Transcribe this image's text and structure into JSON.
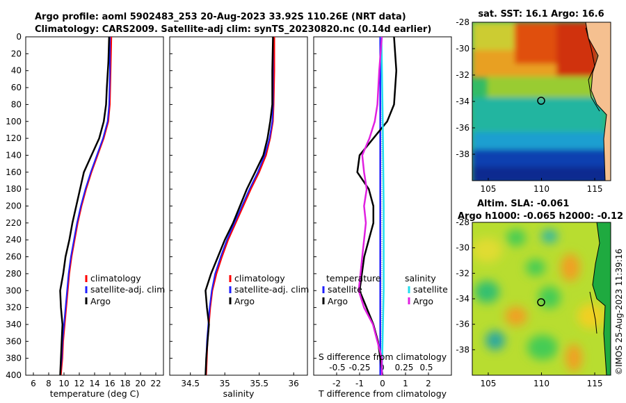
{
  "figure": {
    "title_line1": "Argo profile: aoml 5902483_253 20-Aug-2023 33.92S 110.26E (NRT data)",
    "title_line2": "Climatology: CARS2009. Satellite-adj clim: synTS_20230820.nc (0.14d earlier)",
    "timestamp": "©IMOS 25-Aug-2023 11:39:16"
  },
  "colors": {
    "climatology": "#ff0000",
    "satellite": "#1f1fff",
    "argo": "#000000",
    "sal_satellite": "#22ddee",
    "sal_argo": "#e020e0"
  },
  "chart_data": [
    {
      "type": "line",
      "panel": "temperature",
      "xlabel": "temperature (deg C)",
      "ylabel": "",
      "xlim": [
        5,
        23
      ],
      "ylim": [
        400,
        0
      ],
      "xticks": [
        "6",
        "8",
        "10",
        "12",
        "14",
        "16",
        "18",
        "20",
        "22"
      ],
      "xtick_values": [
        6,
        8,
        10,
        12,
        14,
        16,
        18,
        20,
        22
      ],
      "yticks": [
        0,
        20,
        40,
        60,
        80,
        100,
        120,
        140,
        160,
        180,
        200,
        220,
        240,
        260,
        280,
        300,
        320,
        340,
        360,
        380,
        400
      ],
      "legend": [
        "climatology",
        "satellite-adj. clim",
        "Argo"
      ],
      "series": [
        {
          "name": "climatology",
          "depth": [
            0,
            40,
            80,
            100,
            120,
            140,
            160,
            180,
            200,
            220,
            240,
            260,
            280,
            300,
            320,
            340,
            360,
            380,
            400
          ],
          "values": [
            16.2,
            16.1,
            16.0,
            15.8,
            15.2,
            14.4,
            13.6,
            12.9,
            12.3,
            11.8,
            11.4,
            11.0,
            10.7,
            10.5,
            10.3,
            10.1,
            9.9,
            9.8,
            9.6
          ]
        },
        {
          "name": "satellite-adj. clim",
          "depth": [
            0,
            40,
            80,
            100,
            120,
            140,
            160,
            180,
            200,
            220,
            240,
            260,
            280,
            300,
            320,
            340,
            360,
            380,
            400
          ],
          "values": [
            16.0,
            16.0,
            15.9,
            15.7,
            15.1,
            14.3,
            13.5,
            12.8,
            12.2,
            11.7,
            11.3,
            10.9,
            10.6,
            10.4,
            10.2,
            10.0,
            9.8,
            9.7,
            9.5
          ]
        },
        {
          "name": "Argo",
          "depth": [
            0,
            30,
            60,
            80,
            100,
            120,
            140,
            160,
            180,
            200,
            220,
            240,
            260,
            280,
            300,
            320,
            340,
            360,
            380,
            400
          ],
          "values": [
            15.9,
            15.8,
            15.6,
            15.5,
            15.2,
            14.6,
            13.6,
            12.6,
            12.1,
            11.6,
            11.1,
            10.7,
            10.2,
            9.9,
            9.5,
            9.6,
            9.8,
            9.7,
            9.6,
            9.5
          ]
        }
      ]
    },
    {
      "type": "line",
      "panel": "salinity",
      "xlabel": "salinity",
      "xlim": [
        34.2,
        36.2
      ],
      "ylim": [
        400,
        0
      ],
      "xticks": [
        "34.5",
        "35",
        "35.5",
        "36"
      ],
      "xtick_values": [
        34.5,
        35.0,
        35.5,
        36.0
      ],
      "legend": [
        "climatology",
        "satellite-adj. clim",
        "Argo"
      ],
      "series": [
        {
          "name": "climatology",
          "depth": [
            0,
            40,
            80,
            100,
            120,
            140,
            160,
            180,
            200,
            220,
            240,
            260,
            280,
            300,
            320,
            340,
            360,
            380,
            400
          ],
          "values": [
            35.72,
            35.72,
            35.71,
            35.7,
            35.66,
            35.6,
            35.5,
            35.38,
            35.27,
            35.16,
            35.05,
            34.96,
            34.88,
            34.82,
            34.79,
            34.77,
            34.75,
            34.74,
            34.73
          ]
        },
        {
          "name": "satellite-adj. clim",
          "depth": [
            0,
            40,
            80,
            100,
            120,
            140,
            160,
            180,
            200,
            220,
            240,
            260,
            280,
            300,
            320,
            340,
            360,
            380,
            400
          ],
          "values": [
            35.7,
            35.7,
            35.7,
            35.69,
            35.65,
            35.58,
            35.48,
            35.36,
            35.25,
            35.14,
            35.03,
            34.94,
            34.86,
            34.81,
            34.78,
            34.76,
            34.74,
            34.73,
            34.72
          ]
        },
        {
          "name": "Argo",
          "depth": [
            0,
            40,
            80,
            100,
            120,
            140,
            160,
            180,
            200,
            220,
            240,
            260,
            280,
            300,
            320,
            340,
            360,
            380,
            400
          ],
          "values": [
            35.7,
            35.69,
            35.69,
            35.66,
            35.62,
            35.56,
            35.44,
            35.32,
            35.22,
            35.12,
            35.0,
            34.9,
            34.8,
            34.72,
            34.74,
            34.77,
            34.75,
            34.73,
            34.72
          ]
        }
      ]
    },
    {
      "type": "line",
      "panel": "difference",
      "xlabel": "T difference from climatology",
      "x2label": "S difference from climatology",
      "xlim": [
        -3,
        3
      ],
      "ylim": [
        400,
        0
      ],
      "xticks": [
        "-2",
        "-1",
        "0",
        "1",
        "2"
      ],
      "xtick_values": [
        -2,
        -1,
        0,
        1,
        2
      ],
      "x2ticks": [
        "-0.5",
        "-0.25",
        "0",
        "0.25",
        "0.5"
      ],
      "x2tick_values": [
        -0.5,
        -0.25,
        0,
        0.25,
        0.5
      ],
      "legend": {
        "temperature_title": "temperature",
        "salinity_title": "salinity",
        "entries": [
          "satellite",
          "Argo",
          "satellite",
          "Argo"
        ]
      },
      "series": [
        {
          "name": "T satellite",
          "depth": [
            0,
            100,
            200,
            300,
            400
          ],
          "values": [
            -0.1,
            -0.1,
            -0.1,
            -0.1,
            -0.1
          ]
        },
        {
          "name": "T Argo",
          "depth": [
            0,
            40,
            80,
            100,
            120,
            140,
            160,
            180,
            200,
            220,
            240,
            260,
            280,
            300,
            320,
            340,
            360,
            380,
            400
          ],
          "values": [
            0.5,
            0.6,
            0.5,
            0.2,
            -0.4,
            -1.0,
            -1.1,
            -0.6,
            -0.4,
            -0.4,
            -0.6,
            -0.8,
            -0.9,
            -1.0,
            -0.7,
            -0.4,
            -0.2,
            -0.1,
            0.0
          ]
        },
        {
          "name": "S satellite",
          "depth": [
            0,
            100,
            200,
            300,
            400
          ],
          "values": [
            -0.005,
            0.01,
            0.02,
            0.02,
            0.0
          ]
        },
        {
          "name": "S Argo",
          "depth": [
            0,
            40,
            80,
            100,
            120,
            140,
            160,
            180,
            200,
            220,
            240,
            260,
            280,
            300,
            320,
            340,
            360,
            380,
            400
          ],
          "values": [
            0.0,
            -0.03,
            -0.05,
            -0.08,
            -0.14,
            -0.22,
            -0.2,
            -0.17,
            -0.2,
            -0.18,
            -0.2,
            -0.22,
            -0.24,
            -0.26,
            -0.2,
            -0.1,
            -0.05,
            0.0,
            0.0
          ]
        }
      ]
    },
    {
      "type": "heatmap",
      "panel": "sst_map",
      "title": "sat. SST: 16.1 Argo: 16.6",
      "xlim": [
        103.5,
        116.5
      ],
      "ylim": [
        -40,
        -28
      ],
      "xticks": [
        "105",
        "110",
        "115"
      ],
      "xtick_values": [
        105,
        110,
        115
      ],
      "yticks": [
        "-28",
        "-30",
        "-32",
        "-34",
        "-36",
        "-38"
      ],
      "ytick_values": [
        -28,
        -30,
        -32,
        -34,
        -36,
        -38
      ],
      "argo_position": {
        "lon": 110.26,
        "lat": -33.92
      }
    },
    {
      "type": "heatmap",
      "panel": "sla_map",
      "title_line1": "Altim. SLA: -0.061",
      "title_line2": "Argo h1000: -0.065 h2000: -0.12",
      "xlim": [
        103.5,
        116.5
      ],
      "ylim": [
        -40,
        -28
      ],
      "xticks": [
        "105",
        "110",
        "115"
      ],
      "xtick_values": [
        105,
        110,
        115
      ],
      "yticks": [
        "-28",
        "-30",
        "-32",
        "-34",
        "-36",
        "-38"
      ],
      "ytick_values": [
        -28,
        -30,
        -32,
        -34,
        -36,
        -38
      ],
      "argo_position": {
        "lon": 110.26,
        "lat": -33.92
      }
    }
  ]
}
